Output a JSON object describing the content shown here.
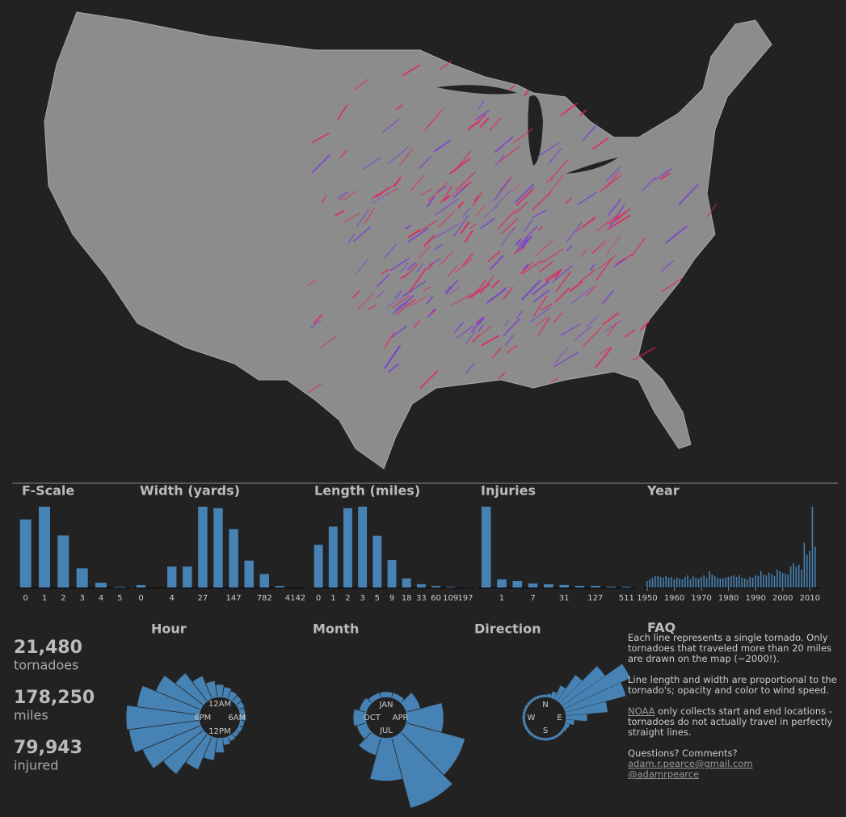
{
  "chart_data": [
    {
      "type": "bar",
      "title": "F-Scale",
      "categories": [
        "0",
        "1",
        "2",
        "3",
        "4",
        "5"
      ],
      "values": [
        6400,
        7600,
        4900,
        1800,
        450,
        60
      ],
      "color": "#4682b4"
    },
    {
      "type": "bar",
      "title": "Width (yards)",
      "categories": [
        "0",
        null,
        "4",
        null,
        "27",
        null,
        "147",
        null,
        "782",
        null,
        "4142"
      ],
      "values": [
        80,
        0,
        700,
        700,
        2700,
        2650,
        1950,
        900,
        450,
        50,
        0
      ],
      "color": "#4682b4"
    },
    {
      "type": "bar",
      "title": "Length (miles)",
      "categories": [
        "0",
        "1",
        "2",
        "3",
        "5",
        "9",
        "18",
        "33",
        "60",
        "109",
        "197"
      ],
      "values": [
        1400,
        2000,
        2600,
        2650,
        1700,
        900,
        300,
        110,
        50,
        20,
        5
      ],
      "color": "#4682b4"
    },
    {
      "type": "bar",
      "title": "Injuries",
      "categories": [
        null,
        "1",
        null,
        "7",
        null,
        "31",
        null,
        "127",
        null,
        "511"
      ],
      "values": [
        13000,
        1300,
        1050,
        650,
        520,
        400,
        260,
        260,
        130,
        130
      ],
      "color": "#4682b4"
    },
    {
      "type": "bar",
      "title": "Year",
      "x": [
        1950,
        1951,
        1952,
        1953,
        1954,
        1955,
        1956,
        1957,
        1958,
        1959,
        1960,
        1961,
        1962,
        1963,
        1964,
        1965,
        1966,
        1967,
        1968,
        1969,
        1970,
        1971,
        1972,
        1973,
        1974,
        1975,
        1976,
        1977,
        1978,
        1979,
        1980,
        1981,
        1982,
        1983,
        1984,
        1985,
        1986,
        1987,
        1988,
        1989,
        1990,
        1991,
        1992,
        1993,
        1994,
        1995,
        1996,
        1997,
        1998,
        1999,
        2000,
        2001,
        2002,
        2003,
        2004,
        2005,
        2006,
        2007,
        2008,
        2009,
        2010,
        2011,
        2012
      ],
      "values": [
        8,
        10,
        12,
        14,
        14,
        13,
        12,
        14,
        12,
        13,
        10,
        12,
        11,
        10,
        13,
        15,
        10,
        14,
        12,
        11,
        13,
        15,
        12,
        20,
        16,
        14,
        12,
        11,
        11,
        12,
        13,
        14,
        15,
        13,
        15,
        12,
        11,
        10,
        13,
        12,
        15,
        14,
        20,
        16,
        15,
        18,
        16,
        14,
        22,
        20,
        18,
        17,
        16,
        26,
        30,
        25,
        28,
        22,
        55,
        40,
        45,
        99,
        50
      ],
      "xlim": [
        1950,
        2012
      ],
      "xticks": [
        1950,
        1960,
        1970,
        1980,
        1990,
        2000,
        2010
      ],
      "color": "#4682b4"
    },
    {
      "type": "radial",
      "title": "Hour",
      "categories": [
        "12AM",
        null,
        null,
        null,
        null,
        null,
        "6AM",
        null,
        null,
        null,
        null,
        null,
        "12PM",
        null,
        null,
        null,
        null,
        null,
        "6PM",
        null,
        null,
        null,
        null,
        null
      ],
      "values": [
        12,
        10,
        8,
        7,
        6,
        5,
        5,
        4,
        4,
        4,
        5,
        7,
        14,
        22,
        35,
        50,
        62,
        70,
        72,
        62,
        48,
        35,
        24,
        16
      ],
      "color": "#4682b4"
    },
    {
      "type": "radial",
      "title": "Month",
      "categories": [
        "JAN",
        null,
        null,
        "APR",
        null,
        null,
        "JUL",
        null,
        null,
        "OCT",
        null,
        null
      ],
      "values": [
        4,
        4,
        12,
        30,
        50,
        60,
        35,
        15,
        8,
        10,
        6,
        4
      ],
      "color": "#4682b4"
    },
    {
      "type": "radial",
      "title": "Direction",
      "categories": [
        "N",
        null,
        null,
        null,
        null,
        null,
        null,
        null,
        null,
        "E",
        null,
        null,
        null,
        null,
        null,
        null,
        null,
        null,
        "S",
        null,
        null,
        null,
        null,
        null,
        null,
        null,
        null,
        "W",
        null,
        null,
        null,
        null,
        null,
        null,
        null,
        null
      ],
      "values": [
        2,
        3,
        6,
        14,
        30,
        50,
        70,
        60,
        40,
        20,
        8,
        4,
        3,
        2,
        2,
        2,
        2,
        2,
        2,
        2,
        2,
        2,
        2,
        2,
        2,
        2,
        2,
        2,
        2,
        2,
        2,
        2,
        2,
        2,
        2,
        2
      ],
      "color": "#4682b4"
    }
  ],
  "stats": [
    {
      "value": "21,480",
      "label": "tornadoes"
    },
    {
      "value": "178,250",
      "label": "miles"
    },
    {
      "value": "79,943",
      "label": "injured"
    }
  ],
  "faq": {
    "title": "FAQ",
    "paragraphs": [
      "Each line represents a single tornado. Only tornadoes that traveled more than 20 miles are drawn on the map (~2000!).",
      "Line length and width are proportional to the tornado's; opacity and color to wind speed."
    ],
    "note": {
      "link": "NOAA",
      "text": " only collects start and end locations - tornadoes do not actually travel in perfectly straight lines."
    },
    "contact": {
      "question": "Questions? Comments?",
      "email": "adam.r.pearce@gmail.com",
      "twitter": "@adamrpearce"
    }
  }
}
